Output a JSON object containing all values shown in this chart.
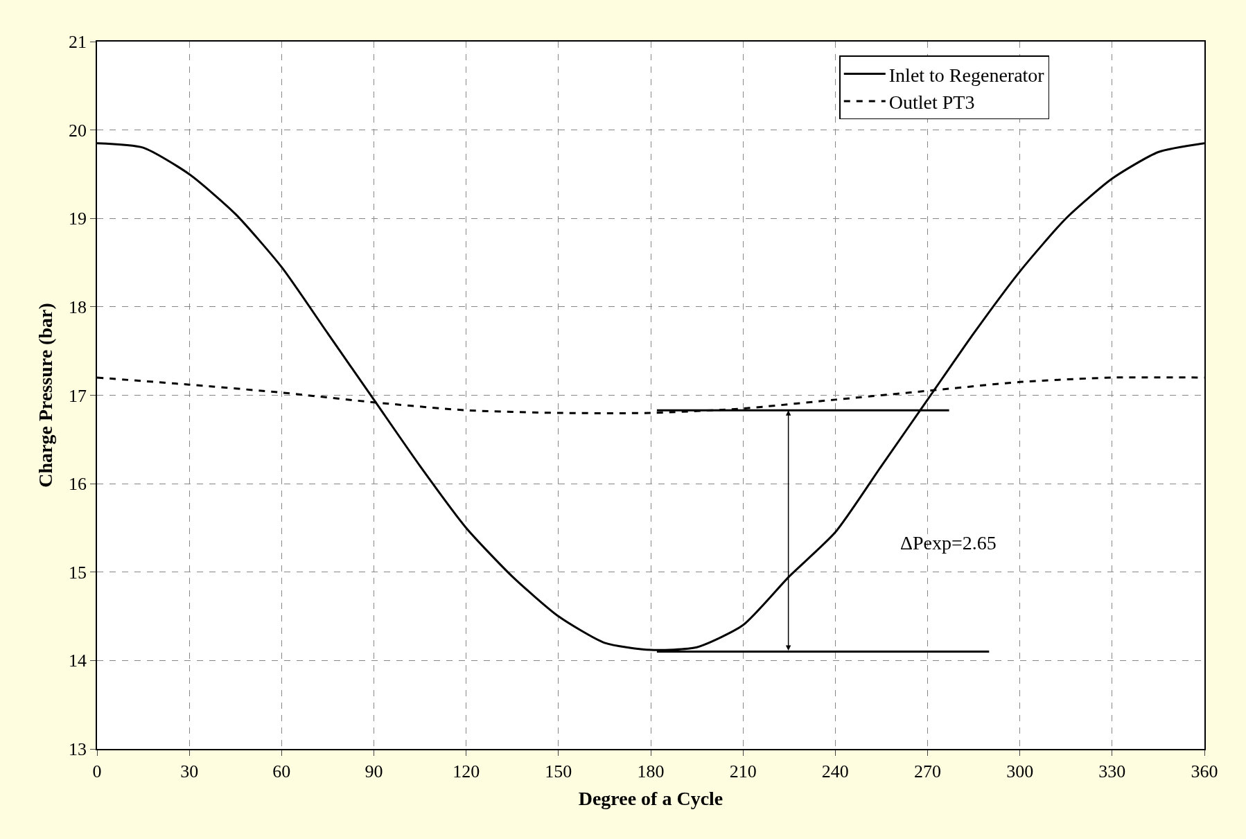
{
  "chart_data": {
    "type": "line",
    "xlabel": "Degree of a Cycle",
    "ylabel": "Charge Pressure (bar)",
    "x": [
      0,
      15,
      30,
      45,
      60,
      75,
      90,
      105,
      120,
      135,
      150,
      165,
      180,
      195,
      210,
      225,
      240,
      255,
      270,
      285,
      300,
      315,
      330,
      345,
      360
    ],
    "series": [
      {
        "name": "Inlet to Regenerator",
        "color": "#000000",
        "line_style": "solid",
        "values": [
          19.85,
          19.8,
          19.5,
          19.05,
          18.45,
          17.7,
          16.95,
          16.2,
          15.5,
          14.95,
          14.5,
          14.2,
          14.12,
          14.15,
          14.4,
          14.95,
          15.45,
          16.2,
          16.95,
          17.7,
          18.4,
          19.0,
          19.45,
          19.75,
          19.85
        ]
      },
      {
        "name": "Outlet PT3",
        "color": "#000000",
        "line_style": "dashed",
        "x": [
          0,
          30,
          60,
          90,
          120,
          150,
          180,
          210,
          240,
          270,
          300,
          330,
          360
        ],
        "values": [
          17.2,
          17.12,
          17.03,
          16.92,
          16.83,
          16.8,
          16.8,
          16.85,
          16.95,
          17.05,
          17.15,
          17.2,
          17.2
        ]
      },
      {
        "color": "#000000",
        "line_style": "solid",
        "x": [
          182,
          277
        ],
        "values": [
          16.83,
          16.83
        ]
      },
      {
        "color": "#000000",
        "line_style": "solid",
        "x": [
          182,
          290
        ],
        "values": [
          14.1,
          14.1
        ]
      }
    ],
    "annotations": [
      "ΔPexp=2.65"
    ],
    "xlim": [
      0,
      360
    ],
    "xticks": [
      0,
      30,
      60,
      90,
      120,
      150,
      180,
      210,
      240,
      270,
      300,
      330,
      360
    ],
    "ylim": [
      13,
      21
    ],
    "yticks": [
      13,
      14,
      15,
      16,
      17,
      18,
      19,
      20,
      21
    ],
    "grid": true,
    "legend": "top right",
    "marker": "none"
  }
}
